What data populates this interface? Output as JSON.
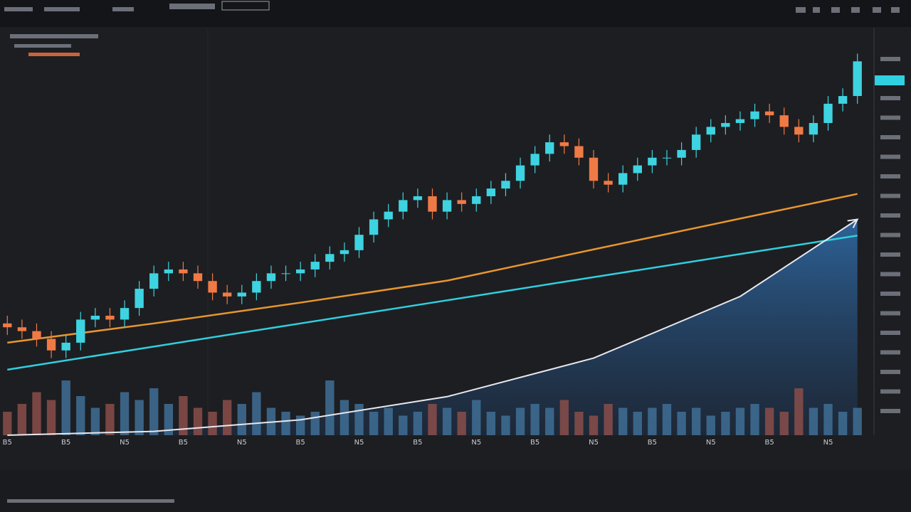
{
  "chart_data": {
    "type": "candlestick",
    "categories": [
      "B5",
      null,
      null,
      null,
      "B5",
      null,
      null,
      null,
      "N5",
      null,
      null,
      null,
      "B5",
      null,
      null,
      null,
      "N5",
      null,
      null,
      null,
      "B5",
      null,
      null,
      null,
      "N5",
      null,
      null,
      null,
      "B5",
      null,
      null,
      null,
      "N5",
      null,
      null,
      null,
      "B5",
      null,
      null,
      null,
      "N5",
      null,
      null,
      null,
      "B5",
      null,
      null,
      null,
      "N5",
      null,
      null,
      null,
      "B5",
      null,
      null,
      null,
      "N5",
      null,
      null
    ],
    "open": [
      29,
      28,
      27,
      25,
      22,
      24,
      30,
      31,
      30,
      33,
      38,
      42,
      43,
      42,
      40,
      37,
      36,
      37,
      40,
      42,
      42,
      43,
      45,
      47,
      48,
      52,
      56,
      58,
      61,
      62,
      58,
      61,
      60,
      62,
      64,
      66,
      70,
      73,
      76,
      75,
      72,
      66,
      65,
      68,
      70,
      72,
      72,
      74,
      78,
      80,
      81,
      82,
      84,
      83,
      80,
      78,
      81,
      86,
      88
    ],
    "high": [
      31,
      30,
      29,
      27,
      26,
      32,
      33,
      33,
      35,
      40,
      44,
      45,
      45,
      44,
      42,
      39,
      39,
      42,
      44,
      44,
      45,
      47,
      49,
      50,
      54,
      58,
      60,
      63,
      64,
      64,
      63,
      63,
      64,
      66,
      68,
      72,
      75,
      78,
      78,
      77,
      74,
      68,
      70,
      72,
      74,
      74,
      76,
      80,
      82,
      83,
      84,
      86,
      86,
      85,
      82,
      83,
      88,
      90,
      99
    ],
    "low": [
      26,
      25,
      23,
      20,
      20,
      22,
      28,
      28,
      28,
      31,
      36,
      40,
      40,
      38,
      35,
      34,
      34,
      35,
      38,
      40,
      40,
      41,
      43,
      45,
      46,
      50,
      54,
      56,
      59,
      56,
      56,
      58,
      58,
      60,
      62,
      64,
      68,
      71,
      73,
      70,
      64,
      63,
      63,
      66,
      68,
      70,
      70,
      72,
      76,
      78,
      79,
      80,
      81,
      78,
      76,
      76,
      79,
      84,
      86
    ],
    "close": [
      28,
      27,
      25,
      22,
      24,
      30,
      31,
      30,
      33,
      38,
      42,
      43,
      42,
      40,
      37,
      36,
      37,
      40,
      42,
      42,
      43,
      45,
      47,
      48,
      52,
      56,
      58,
      61,
      62,
      58,
      61,
      60,
      62,
      64,
      66,
      70,
      73,
      76,
      75,
      72,
      66,
      65,
      68,
      70,
      72,
      72,
      74,
      78,
      80,
      81,
      82,
      84,
      83,
      80,
      78,
      81,
      86,
      88,
      97
    ],
    "up_color": "#3ed3e0",
    "down_color": "#f07a45",
    "ylim": [
      0,
      100
    ],
    "volume": [
      30,
      40,
      55,
      45,
      70,
      50,
      35,
      40,
      55,
      45,
      60,
      40,
      50,
      35,
      30,
      45,
      40,
      55,
      35,
      30,
      25,
      30,
      70,
      45,
      40,
      30,
      35,
      25,
      30,
      40,
      35,
      30,
      45,
      30,
      25,
      35,
      40,
      35,
      45,
      30,
      25,
      40,
      35,
      30,
      35,
      40,
      30,
      35,
      25,
      30,
      35,
      40,
      35,
      30,
      60,
      35,
      40,
      30,
      35
    ],
    "volume_lim": [
      0,
      100
    ],
    "lines": [
      {
        "color": "#e8962e",
        "x": [
          0,
          10,
          20,
          30,
          40,
          50,
          58
        ],
        "values": [
          24,
          29,
          34.4,
          40.1,
          48.2,
          56.2,
          62.6
        ]
      },
      {
        "color": "#2fd0e0",
        "x": [
          0,
          10,
          20,
          30,
          40,
          50,
          58
        ],
        "values": [
          17,
          23,
          29,
          35,
          41,
          47,
          51.8
        ]
      }
    ],
    "area": {
      "color": "#e8e8ee",
      "fill": "#2a5a8c",
      "x": [
        0,
        10,
        20,
        30,
        40,
        50,
        58
      ],
      "values": [
        0,
        1,
        4,
        10,
        20,
        36,
        56
      ]
    }
  }
}
